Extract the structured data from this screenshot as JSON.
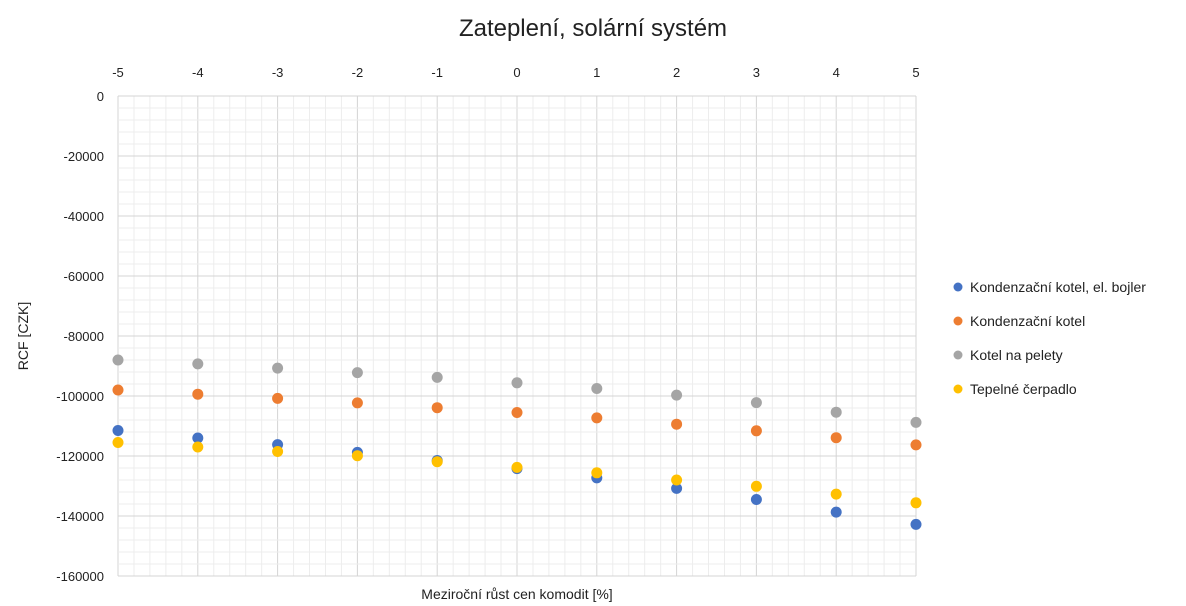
{
  "chart_data": {
    "type": "scatter",
    "title": "Zateplení, solární systém",
    "xlabel": "Meziroční růst cen komodit [%]",
    "ylabel": "RCF [CZK]",
    "x": [
      -5,
      -4,
      -3,
      -2,
      -1,
      0,
      1,
      2,
      3,
      4,
      5
    ],
    "xlim": [
      -5,
      5
    ],
    "ylim": [
      -160000,
      0
    ],
    "y_ticks": [
      0,
      -20000,
      -40000,
      -60000,
      -80000,
      -100000,
      -120000,
      -140000,
      -160000
    ],
    "x_axis_position": "top",
    "grid": true,
    "legend_position": "right",
    "series": [
      {
        "name": "Kondenzační kotel, el. bojler",
        "color": "#4472c4",
        "values": [
          -111500,
          -114000,
          -116200,
          -118800,
          -121500,
          -124200,
          -127300,
          -130800,
          -134500,
          -138700,
          -142800
        ]
      },
      {
        "name": "Kondenzační kotel",
        "color": "#ed7d31",
        "values": [
          -98000,
          -99400,
          -100800,
          -102300,
          -103900,
          -105500,
          -107300,
          -109400,
          -111600,
          -113900,
          -116300
        ]
      },
      {
        "name": "Kotel na pelety",
        "color": "#a5a5a5",
        "values": [
          -88000,
          -89300,
          -90700,
          -92200,
          -93800,
          -95600,
          -97500,
          -99700,
          -102200,
          -105400,
          -108800
        ]
      },
      {
        "name": "Tepelné čerpadlo",
        "color": "#ffc000",
        "values": [
          -115500,
          -117000,
          -118500,
          -119900,
          -121900,
          -123800,
          -125600,
          -128000,
          -130100,
          -132700,
          -135600
        ]
      }
    ]
  }
}
